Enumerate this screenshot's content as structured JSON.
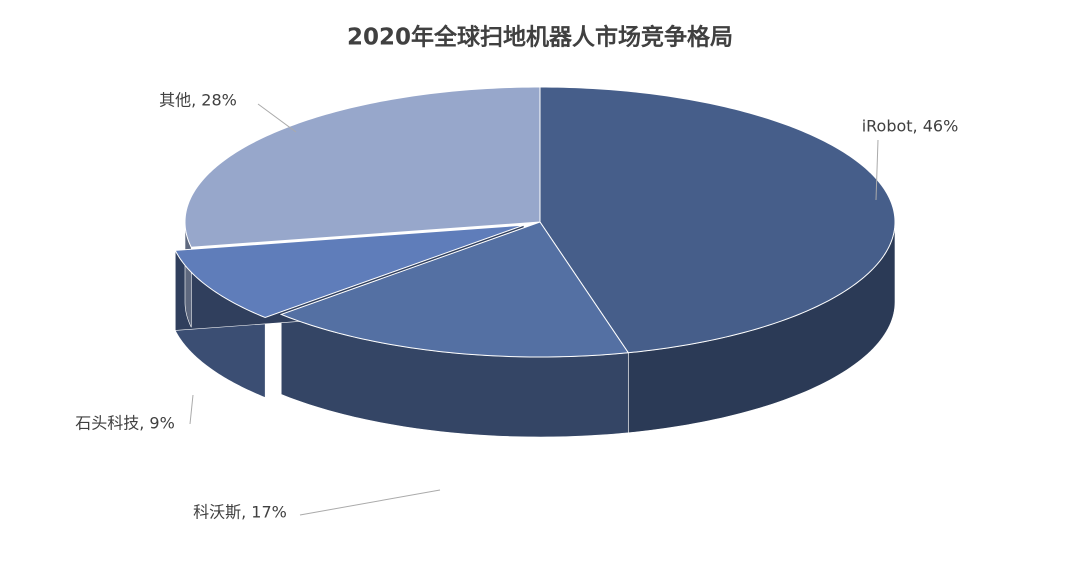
{
  "chart_data": {
    "type": "pie3d",
    "title": "2020年全球扫地机器人市场竞争格局",
    "categories": [
      "iRobot",
      "科沃斯",
      "石头科技",
      "其他"
    ],
    "values": [
      46,
      17,
      9,
      28
    ],
    "value_labels": [
      "iRobot, 46%",
      "科沃斯, 17%",
      "石头科技, 9%",
      "其他, 28%"
    ],
    "colors": [
      "#465e8a",
      "#5470a3",
      "#5f7dba",
      "#97a7cb"
    ]
  }
}
